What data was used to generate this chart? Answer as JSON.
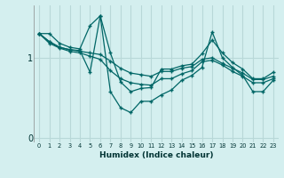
{
  "xlabel": "Humidex (Indice chaleur)",
  "background_color": "#d4efef",
  "grid_color": "#b8d8d8",
  "line_color": "#006666",
  "xtick_vals": [
    0,
    1,
    2,
    3,
    4,
    5,
    6,
    7,
    8,
    9,
    10,
    11,
    12,
    13,
    14,
    15,
    16,
    17,
    18,
    19,
    20,
    21,
    22,
    23
  ],
  "ytick_vals": [
    0,
    1
  ],
  "ylim": [
    -0.05,
    1.65
  ],
  "xlim": [
    -0.5,
    23.5
  ],
  "series": [
    [
      1.3,
      1.3,
      1.18,
      1.13,
      1.11,
      1.4,
      1.52,
      1.06,
      0.7,
      0.58,
      0.62,
      0.63,
      0.86,
      0.86,
      0.9,
      0.92,
      1.05,
      1.22,
      1.06,
      0.94,
      0.86,
      0.74,
      0.74,
      0.82
    ],
    [
      1.3,
      1.18,
      1.12,
      1.08,
      1.06,
      1.02,
      0.98,
      0.84,
      0.74,
      0.69,
      0.67,
      0.66,
      0.74,
      0.74,
      0.8,
      0.84,
      0.95,
      0.97,
      0.91,
      0.83,
      0.77,
      0.69,
      0.69,
      0.74
    ],
    [
      1.3,
      1.2,
      1.13,
      1.1,
      1.08,
      1.06,
      1.04,
      0.96,
      0.87,
      0.81,
      0.79,
      0.77,
      0.83,
      0.83,
      0.87,
      0.89,
      0.98,
      1.0,
      0.93,
      0.87,
      0.81,
      0.73,
      0.73,
      0.77
    ],
    [
      1.3,
      1.2,
      1.13,
      1.1,
      1.09,
      0.82,
      1.52,
      0.58,
      0.38,
      0.32,
      0.46,
      0.46,
      0.54,
      0.6,
      0.72,
      0.78,
      0.88,
      1.32,
      1.0,
      0.88,
      0.78,
      0.58,
      0.58,
      0.72
    ]
  ]
}
